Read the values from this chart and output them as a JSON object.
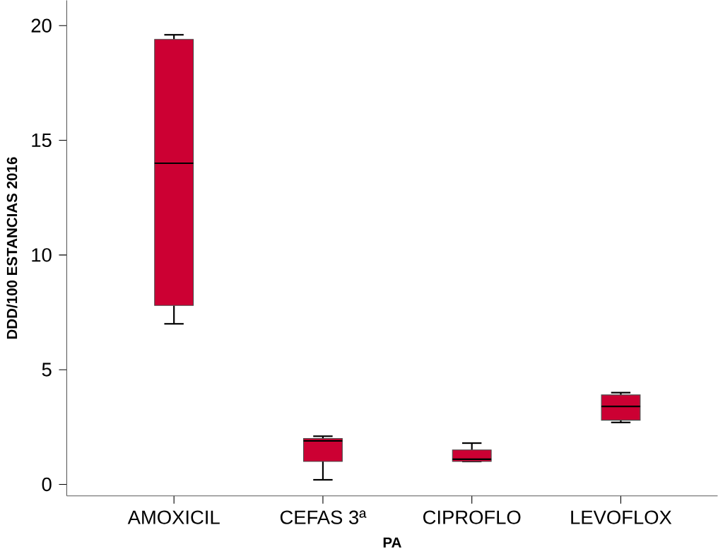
{
  "chart_data": {
    "type": "box",
    "xlabel": "PA",
    "ylabel": "DDD/100 ESTANCIAS 2016",
    "categories": [
      "AMOXICIL",
      "CEFAS 3ª",
      "CIPROFLO",
      "LEVOFLOX"
    ],
    "boxes": [
      {
        "low": 7.0,
        "q1": 7.8,
        "median": 14.0,
        "q3": 19.4,
        "high": 19.6
      },
      {
        "low": 0.2,
        "q1": 1.0,
        "median": 1.9,
        "q3": 2.0,
        "high": 2.1
      },
      {
        "low": 1.0,
        "q1": 1.0,
        "median": 1.1,
        "q3": 1.5,
        "high": 1.8
      },
      {
        "low": 2.7,
        "q1": 2.8,
        "median": 3.4,
        "q3": 3.9,
        "high": 4.0
      }
    ],
    "color": "#cc0033",
    "ylim": [
      -0.5,
      21.1
    ],
    "yticks": [
      0,
      5,
      10,
      15,
      20
    ],
    "grid": false
  }
}
